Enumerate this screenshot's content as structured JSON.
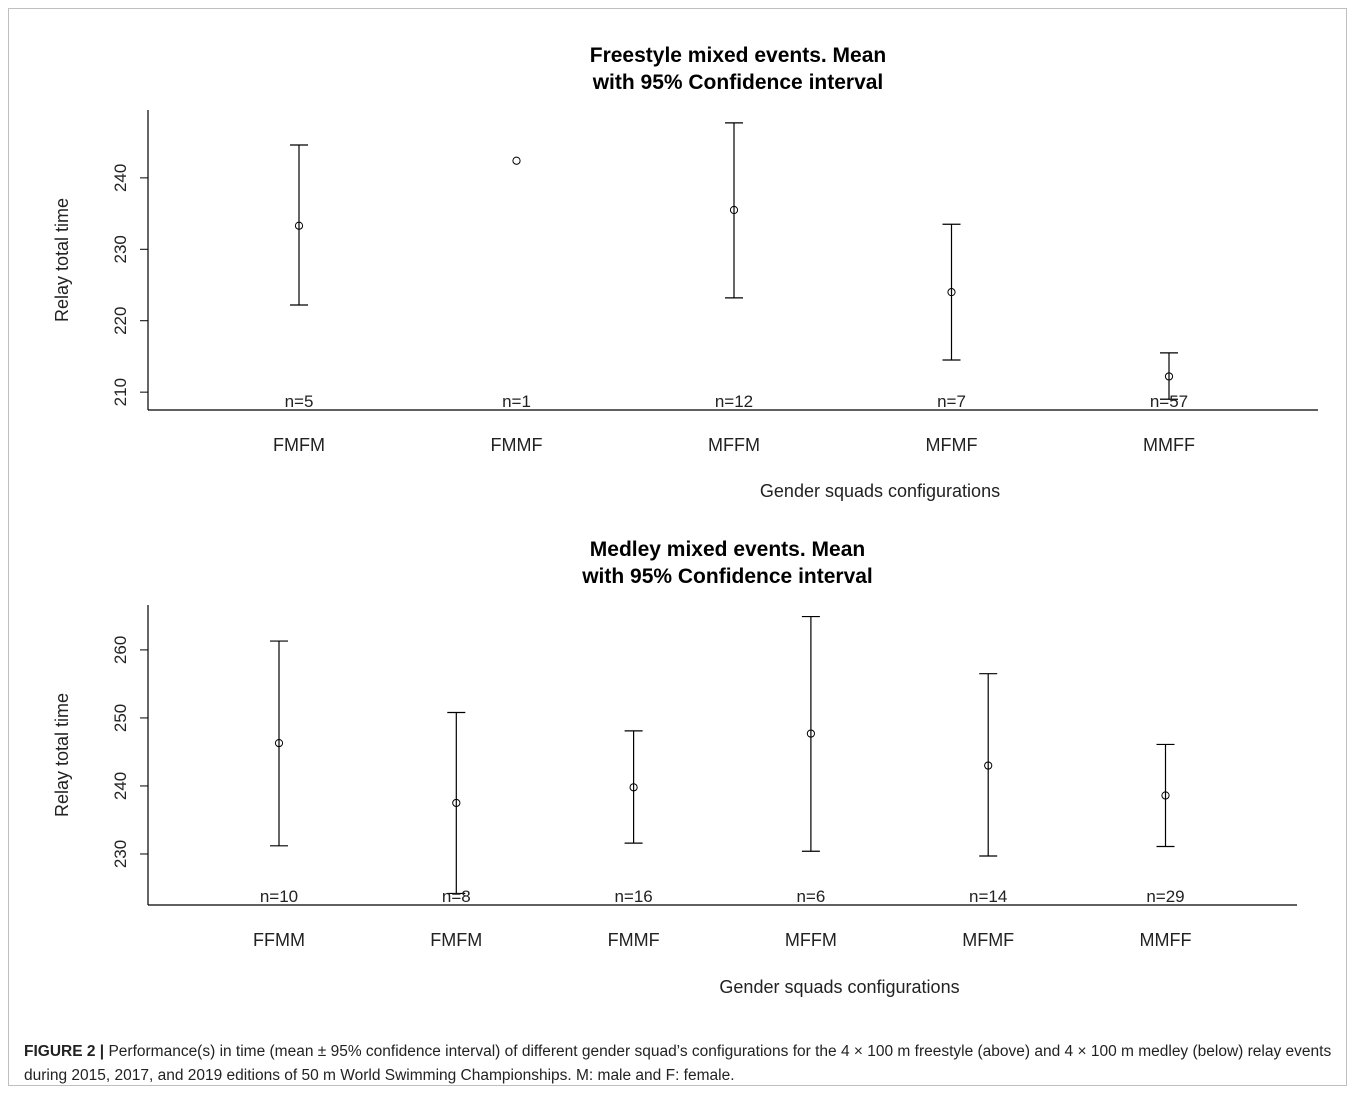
{
  "chart_data": [
    {
      "type": "scatter",
      "title": "Freestyle mixed events. Mean\nwith 95% Confidence interval",
      "xlabel": "Gender squads configurations",
      "ylabel": "Relay total time",
      "yticks": [
        210,
        220,
        230,
        240
      ],
      "ylim": [
        207.5,
        249.5
      ],
      "categories": [
        "FMFM",
        "FMMF",
        "MFFM",
        "MFMF",
        "MMFF"
      ],
      "mean": [
        233.3,
        242.4,
        235.5,
        224.0,
        212.2
      ],
      "ci_lower": [
        222.2,
        null,
        223.2,
        214.5,
        209.0
      ],
      "ci_upper": [
        244.6,
        null,
        247.7,
        233.5,
        215.5
      ],
      "n_labels": [
        "n=5",
        "n=1",
        "n=12",
        "n=7",
        "n=57"
      ]
    },
    {
      "type": "scatter",
      "title": "Medley mixed events. Mean\nwith 95% Confidence interval",
      "xlabel": "Gender squads configurations",
      "ylabel": "Relay total time",
      "yticks": [
        230,
        240,
        250,
        260
      ],
      "ylim": [
        222.5,
        266.6
      ],
      "categories": [
        "FFMM",
        "FMFM",
        "FMMF",
        "MFFM",
        "MFMF",
        "MMFF"
      ],
      "mean": [
        246.3,
        237.5,
        239.8,
        247.7,
        243.0,
        238.6
      ],
      "ci_lower": [
        231.2,
        224.2,
        231.6,
        230.4,
        229.7,
        231.1
      ],
      "ci_upper": [
        261.3,
        250.8,
        248.1,
        264.9,
        256.5,
        246.1
      ],
      "n_labels": [
        "n=10",
        "n=8",
        "n=16",
        "n=6",
        "n=14",
        "n=29"
      ]
    }
  ],
  "caption": {
    "label": "FIGURE 2 |",
    "text": "Performance(s) in time (mean ± 95% confidence interval) of different gender squad’s configurations for the 4 × 100 m freestyle (above) and 4 × 100 m medley (below) relay events during 2015, 2017, and 2019 editions of 50 m World Swimming Championships. M: male and F: female."
  }
}
